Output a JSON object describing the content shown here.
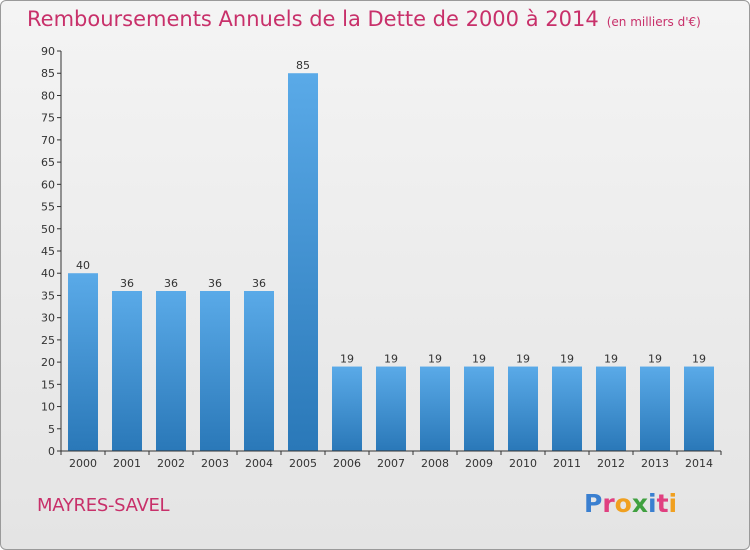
{
  "title": "Remboursements Annuels de la Dette de 2000 à 2014",
  "unit_note": "(en milliers d'€)",
  "commune": "MAYRES-SAVEL",
  "logo": "Proxiti",
  "colors": {
    "title": "#c8306a",
    "bar_top": "#5aaae8",
    "bar_bottom": "#2a78b8",
    "axis": "#333333",
    "logo_letters": [
      "#3a7fd0",
      "#e04080",
      "#f0a020",
      "#40a040",
      "#3a7fd0",
      "#e04080",
      "#f0a020"
    ]
  },
  "chart_data": {
    "type": "bar",
    "categories": [
      "2000",
      "2001",
      "2002",
      "2003",
      "2004",
      "2005",
      "2006",
      "2007",
      "2008",
      "2009",
      "2010",
      "2011",
      "2012",
      "2013",
      "2014"
    ],
    "values": [
      40,
      36,
      36,
      36,
      36,
      85,
      19,
      19,
      19,
      19,
      19,
      19,
      19,
      19,
      19
    ],
    "ylim": [
      0,
      90
    ],
    "yticks": [
      0,
      5,
      10,
      15,
      20,
      25,
      30,
      35,
      40,
      45,
      50,
      55,
      60,
      65,
      70,
      75,
      80,
      85,
      90
    ],
    "grid": false,
    "data_labels": true
  }
}
